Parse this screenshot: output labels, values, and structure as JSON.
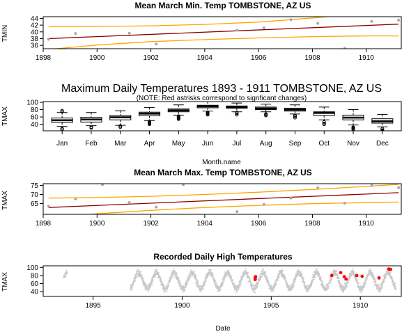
{
  "colors": {
    "trend": "#8b0000",
    "ci": "#ffa500",
    "points": "#a9a9a9",
    "highlight": "#ff0000",
    "box_fill": "#ffffff",
    "axis": "#000000"
  },
  "chart_data": [
    {
      "id": "tmin",
      "type": "scatter",
      "title": "Mean March Min. Temp TOMBSTONE, AZ US",
      "xlabel": "",
      "ylabel": "TMIN",
      "xlim": [
        1898,
        1911.3
      ],
      "ylim": [
        35,
        44.5
      ],
      "xticks": [
        "1898",
        "1900",
        "1902",
        "1904",
        "1906",
        "1908",
        "1910"
      ],
      "yticks": [
        "36",
        "38",
        "40",
        "42",
        "44"
      ],
      "points": [
        {
          "x": 1898.2,
          "y": 37.8
        },
        {
          "x": 1899.2,
          "y": 39.5
        },
        {
          "x": 1901.2,
          "y": 39.6
        },
        {
          "x": 1902.2,
          "y": 36.4
        },
        {
          "x": 1905.2,
          "y": 40.5
        },
        {
          "x": 1906.2,
          "y": 41.2
        },
        {
          "x": 1907.2,
          "y": 43.6
        },
        {
          "x": 1908.2,
          "y": 42.5
        },
        {
          "x": 1909.2,
          "y": 35.1
        },
        {
          "x": 1910.2,
          "y": 43.1
        },
        {
          "x": 1911.2,
          "y": 43.5
        }
      ],
      "trend": [
        {
          "x": 1898.2,
          "y": 38.0
        },
        {
          "x": 1911.2,
          "y": 42.3
        }
      ],
      "ci_upper": [
        {
          "x": 1898.2,
          "y": 41.5
        },
        {
          "x": 1900,
          "y": 41.6
        },
        {
          "x": 1902,
          "y": 41.8
        },
        {
          "x": 1904,
          "y": 42.2
        },
        {
          "x": 1906,
          "y": 42.9
        },
        {
          "x": 1907,
          "y": 43.5
        },
        {
          "x": 1908,
          "y": 44.1
        },
        {
          "x": 1909,
          "y": 44.8
        },
        {
          "x": 1911.2,
          "y": 46.2
        }
      ],
      "ci_lower": [
        {
          "x": 1898.2,
          "y": 34.8
        },
        {
          "x": 1900,
          "y": 36.1
        },
        {
          "x": 1902,
          "y": 37.1
        },
        {
          "x": 1904,
          "y": 37.7
        },
        {
          "x": 1906,
          "y": 38.2
        },
        {
          "x": 1908,
          "y": 38.6
        },
        {
          "x": 1910,
          "y": 38.8
        },
        {
          "x": 1911.2,
          "y": 38.8
        }
      ]
    },
    {
      "id": "tmax-box",
      "type": "box",
      "title": "Maximum Daily Temperatures 1893 - 1911 TOMBSTONE, AZ US",
      "subtitle": "(NOTE: Red astrisks correspond to signficant changes)",
      "xlabel": "Month.name",
      "ylabel": "TMAX",
      "ylim": [
        22,
        102
      ],
      "yticks": [
        "40",
        "60",
        "80",
        "100"
      ],
      "categories": [
        "Jan",
        "Feb",
        "Mar",
        "Apr",
        "May",
        "Jun",
        "Jul",
        "Aug",
        "Sep",
        "Oct",
        "Nov",
        "Dec"
      ],
      "boxes": [
        {
          "min": 34,
          "q1": 45,
          "median": 51,
          "q3": 57,
          "max": 72,
          "outliers": [
            26,
            28,
            75,
            77
          ]
        },
        {
          "min": 36,
          "q1": 46,
          "median": 53,
          "q3": 59,
          "max": 72,
          "outliers": [
            30,
            32
          ]
        },
        {
          "min": 37,
          "q1": 52,
          "median": 59,
          "q3": 64,
          "max": 77,
          "outliers": [
            32,
            35
          ]
        },
        {
          "min": 50,
          "q1": 63,
          "median": 69,
          "q3": 73,
          "max": 86,
          "outliers": [
            40,
            42,
            44,
            45,
            47
          ]
        },
        {
          "min": 65,
          "q1": 74,
          "median": 78,
          "q3": 82,
          "max": 93,
          "outliers": [
            54,
            56,
            58,
            60,
            62
          ]
        },
        {
          "min": 76,
          "q1": 85,
          "median": 89,
          "q3": 92,
          "max": 102,
          "outliers": [
            66,
            68,
            70,
            72
          ]
        },
        {
          "min": 74,
          "q1": 84,
          "median": 87,
          "q3": 90,
          "max": 98,
          "outliers": [
            66,
            70,
            72
          ]
        },
        {
          "min": 74,
          "q1": 80,
          "median": 83,
          "q3": 87,
          "max": 95,
          "outliers": [
            64,
            66,
            68
          ]
        },
        {
          "min": 68,
          "q1": 76,
          "median": 80,
          "q3": 84,
          "max": 93,
          "outliers": [
            58,
            62,
            64
          ]
        },
        {
          "min": 52,
          "q1": 64,
          "median": 71,
          "q3": 74,
          "max": 87,
          "outliers": [
            40,
            42,
            46
          ]
        },
        {
          "min": 38,
          "q1": 52,
          "median": 58,
          "q3": 65,
          "max": 80,
          "outliers": [
            26,
            28,
            30,
            32
          ]
        },
        {
          "min": 33,
          "q1": 43,
          "median": 48,
          "q3": 55,
          "max": 67,
          "outliers": [
            20,
            22,
            24,
            28
          ]
        }
      ]
    },
    {
      "id": "tmax-march",
      "type": "scatter",
      "title": "Mean March Max. Temp TOMBSTONE, AZ US",
      "xlabel": "",
      "ylabel": "TMAX",
      "xlim": [
        1898,
        1911.3
      ],
      "ylim": [
        59,
        76
      ],
      "xticks": [
        "1898",
        "1900",
        "1902",
        "1904",
        "1906",
        "1908",
        "1910"
      ],
      "yticks": [
        "65",
        "70",
        "75"
      ],
      "points": [
        {
          "x": 1898.2,
          "y": 63.5
        },
        {
          "x": 1899.2,
          "y": 67.5
        },
        {
          "x": 1900.2,
          "y": 75.5
        },
        {
          "x": 1901.2,
          "y": 65.5
        },
        {
          "x": 1902.2,
          "y": 63.0
        },
        {
          "x": 1903.2,
          "y": 75.5
        },
        {
          "x": 1905.2,
          "y": 60.5
        },
        {
          "x": 1906.2,
          "y": 64.5
        },
        {
          "x": 1907.2,
          "y": 68.0
        },
        {
          "x": 1908.2,
          "y": 73.8
        },
        {
          "x": 1909.2,
          "y": 65.2
        },
        {
          "x": 1910.2,
          "y": 75.0
        },
        {
          "x": 1911.2,
          "y": 73.8
        }
      ],
      "trend": [
        {
          "x": 1898.2,
          "y": 62.8
        },
        {
          "x": 1911.2,
          "y": 71.0
        }
      ],
      "ci_upper": [
        {
          "x": 1898.2,
          "y": 68.0
        },
        {
          "x": 1900,
          "y": 68.3
        },
        {
          "x": 1902,
          "y": 69.0
        },
        {
          "x": 1904,
          "y": 70.0
        },
        {
          "x": 1906,
          "y": 71.3
        },
        {
          "x": 1908,
          "y": 72.8
        },
        {
          "x": 1910,
          "y": 74.5
        },
        {
          "x": 1911.2,
          "y": 75.6
        }
      ],
      "ci_lower": [
        {
          "x": 1898.2,
          "y": 57.0
        },
        {
          "x": 1900,
          "y": 59.3
        },
        {
          "x": 1902,
          "y": 61.2
        },
        {
          "x": 1904,
          "y": 62.8
        },
        {
          "x": 1906,
          "y": 64.0
        },
        {
          "x": 1908,
          "y": 64.9
        },
        {
          "x": 1910,
          "y": 65.5
        },
        {
          "x": 1911.2,
          "y": 65.8
        }
      ]
    },
    {
      "id": "daily-high",
      "type": "scatter",
      "title": "Recorded Daily High Temperatures",
      "xlabel": "Date",
      "ylabel": "TMAX",
      "xlim": [
        1892.2,
        1912.3
      ],
      "ylim": [
        28,
        104
      ],
      "xticks": [
        "1895",
        "1900",
        "1905",
        "1910"
      ],
      "yticks": [
        "40",
        "60",
        "80",
        "100"
      ],
      "coverage": [
        {
          "start": 1893.35,
          "end": 1893.55
        },
        {
          "start": 1897.1,
          "end": 1912.0
        }
      ],
      "significant_points": [
        {
          "x": 1904.1,
          "y": 74
        },
        {
          "x": 1904.1,
          "y": 70
        },
        {
          "x": 1904.12,
          "y": 77
        },
        {
          "x": 1908.4,
          "y": 80
        },
        {
          "x": 1908.9,
          "y": 87
        },
        {
          "x": 1909.1,
          "y": 77
        },
        {
          "x": 1909.2,
          "y": 71
        },
        {
          "x": 1909.8,
          "y": 80
        },
        {
          "x": 1910.1,
          "y": 78
        },
        {
          "x": 1911.05,
          "y": 74
        },
        {
          "x": 1911.6,
          "y": 96
        },
        {
          "x": 1911.7,
          "y": 95
        }
      ]
    }
  ]
}
